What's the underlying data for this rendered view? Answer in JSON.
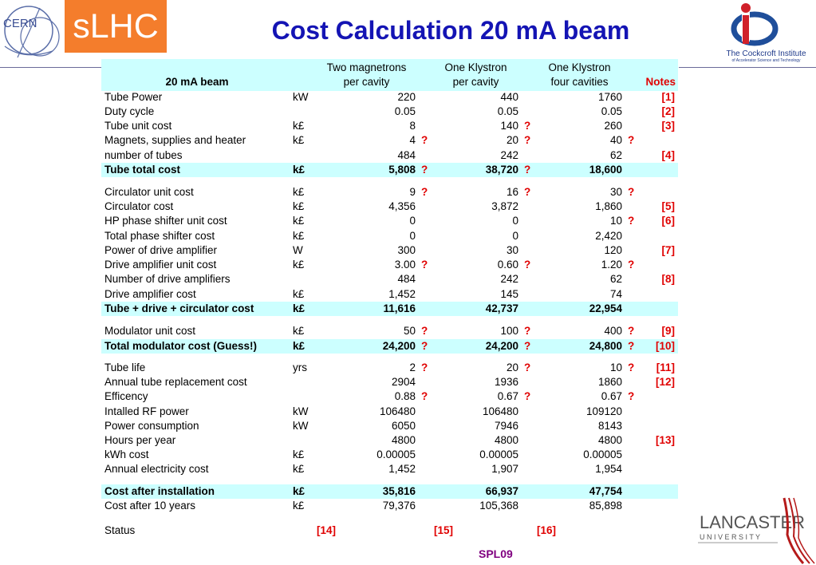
{
  "header": {
    "cern_text": "CERN",
    "slhc": "sLHC",
    "title": "Cost Calculation 20 mA beam",
    "cockcroft_name": "The Cockcroft Institute",
    "cockcroft_sub": "of Accelerator Science and Technology"
  },
  "table": {
    "head": {
      "label": "20 mA beam",
      "col1": [
        "Two magnetrons",
        "per cavity"
      ],
      "col2": [
        "One Klystron",
        "per cavity"
      ],
      "col3": [
        "One Klystron",
        "four cavities"
      ],
      "notes": "Notes"
    },
    "rows": [
      {
        "label": "Tube Power",
        "unit": "kW",
        "v": [
          "220",
          "440",
          "1760"
        ],
        "q": [
          "",
          "",
          ""
        ],
        "note": "[1]"
      },
      {
        "label": "Duty cycle",
        "unit": "",
        "v": [
          "0.05",
          "0.05",
          "0.05"
        ],
        "q": [
          "",
          "",
          ""
        ],
        "note": "[2]"
      },
      {
        "label": "Tube unit cost",
        "unit": "k£",
        "v": [
          "8",
          "140",
          "260"
        ],
        "q": [
          "",
          "?",
          ""
        ],
        "note": "[3]"
      },
      {
        "label": "Magnets, supplies and heater",
        "unit": "k£",
        "v": [
          "4",
          "20",
          "40"
        ],
        "q": [
          "?",
          "?",
          "?"
        ],
        "note": ""
      },
      {
        "label": "number of tubes",
        "unit": "",
        "v": [
          "484",
          "242",
          "62"
        ],
        "q": [
          "",
          "",
          ""
        ],
        "note": "[4]"
      },
      {
        "label": "Tube total cost",
        "unit": "k£",
        "v": [
          "5,808",
          "38,720",
          "18,600"
        ],
        "q": [
          "?",
          "?",
          ""
        ],
        "note": "",
        "hl": true
      },
      {
        "label": "Circulator unit cost",
        "unit": "k£",
        "v": [
          "9",
          "16",
          "30"
        ],
        "q": [
          "?",
          "?",
          "?"
        ],
        "note": ""
      },
      {
        "label": "Circulator cost",
        "unit": "k£",
        "v": [
          "4,356",
          "3,872",
          "1,860"
        ],
        "q": [
          "",
          "",
          ""
        ],
        "note": "[5]"
      },
      {
        "label": "HP phase shifter unit cost",
        "unit": "k£",
        "v": [
          "0",
          "0",
          "10"
        ],
        "q": [
          "",
          "",
          "?"
        ],
        "note": "[6]"
      },
      {
        "label": "Total phase shifter cost",
        "unit": "k£",
        "v": [
          "0",
          "0",
          "2,420"
        ],
        "q": [
          "",
          "",
          ""
        ],
        "note": ""
      },
      {
        "label": "Power of drive amplifier",
        "unit": "W",
        "v": [
          "300",
          "30",
          "120"
        ],
        "q": [
          "",
          "",
          ""
        ],
        "note": "[7]"
      },
      {
        "label": "Drive amplifier unit cost",
        "unit": "k£",
        "v": [
          "3.00",
          "0.60",
          "1.20"
        ],
        "q": [
          "?",
          "?",
          "?"
        ],
        "note": ""
      },
      {
        "label": "Number of drive amplifiers",
        "unit": "",
        "v": [
          "484",
          "242",
          "62"
        ],
        "q": [
          "",
          "",
          ""
        ],
        "note": "[8]"
      },
      {
        "label": "Drive amplifier cost",
        "unit": "k£",
        "v": [
          "1,452",
          "145",
          "74"
        ],
        "q": [
          "",
          "",
          ""
        ],
        "note": ""
      },
      {
        "label": "Tube + drive + circulator cost",
        "unit": "k£",
        "v": [
          "11,616",
          "42,737",
          "22,954"
        ],
        "q": [
          "",
          "",
          ""
        ],
        "note": "",
        "hl": true
      },
      {
        "label": "Modulator unit cost",
        "unit": "k£",
        "v": [
          "50",
          "100",
          "400"
        ],
        "q": [
          "?",
          "?",
          "?"
        ],
        "note": "[9]"
      },
      {
        "label": "Total modulator cost (Guess!)",
        "unit": "k£",
        "v": [
          "24,200",
          "24,200",
          "24,800"
        ],
        "q": [
          "?",
          "?",
          "?"
        ],
        "note": "[10]",
        "hl": true
      },
      {
        "label": "Tube life",
        "unit": "yrs",
        "v": [
          "2",
          "20",
          "10"
        ],
        "q": [
          "?",
          "?",
          "?"
        ],
        "note": "[11]"
      },
      {
        "label": "Annual tube replacement cost",
        "unit": "",
        "v": [
          "2904",
          "1936",
          "1860"
        ],
        "q": [
          "",
          "",
          ""
        ],
        "note": "[12]"
      },
      {
        "label": "Efficency",
        "unit": "",
        "v": [
          "0.88",
          "0.67",
          "0.67"
        ],
        "q": [
          "?",
          "?",
          "?"
        ],
        "note": ""
      },
      {
        "label": "Intalled RF power",
        "unit": "kW",
        "v": [
          "106480",
          "106480",
          "109120"
        ],
        "q": [
          "",
          "",
          ""
        ],
        "note": ""
      },
      {
        "label": "Power consumption",
        "unit": "kW",
        "v": [
          "6050",
          "7946",
          "8143"
        ],
        "q": [
          "",
          "",
          ""
        ],
        "note": ""
      },
      {
        "label": "Hours per year",
        "unit": "",
        "v": [
          "4800",
          "4800",
          "4800"
        ],
        "q": [
          "",
          "",
          ""
        ],
        "note": "[13]"
      },
      {
        "label": "kWh cost",
        "unit": "k£",
        "v": [
          "0.00005",
          "0.00005",
          "0.00005"
        ],
        "q": [
          "",
          "",
          ""
        ],
        "note": ""
      },
      {
        "label": "Annual electricity cost",
        "unit": "k£",
        "v": [
          "1,452",
          "1,907",
          "1,954"
        ],
        "q": [
          "",
          "",
          ""
        ],
        "note": ""
      },
      {
        "label": "Cost after installation",
        "unit": "k£",
        "v": [
          "35,816",
          "66,937",
          "47,754"
        ],
        "q": [
          "",
          "",
          ""
        ],
        "note": "",
        "hl": true
      },
      {
        "label": "Cost after 10 years",
        "unit": "k£",
        "v": [
          "79,376",
          "105,368",
          "85,898"
        ],
        "q": [
          "",
          "",
          ""
        ],
        "note": ""
      }
    ],
    "status": {
      "label": "Status",
      "refs": [
        "[14]",
        "[15]",
        "[16]"
      ]
    }
  },
  "footer": {
    "spl": "SPL09",
    "lancaster": "LANCASTER",
    "university": "U N I V E R S I T Y"
  }
}
